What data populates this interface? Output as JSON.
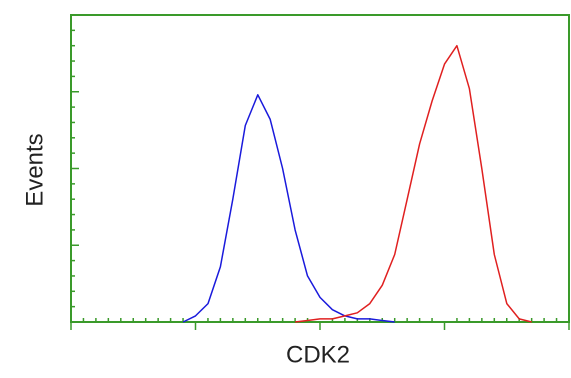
{
  "chart_data": {
    "type": "line",
    "x_label": "CDK2",
    "y_label": "Events",
    "x": [
      0.9,
      1.0,
      1.1,
      1.2,
      1.3,
      1.4,
      1.5,
      1.6,
      1.7,
      1.8,
      1.9,
      2.0,
      2.1,
      2.2,
      2.3,
      2.4,
      2.5,
      2.6,
      2.7,
      2.8,
      2.9,
      3.0,
      3.1,
      3.2,
      3.3,
      3.4,
      3.5,
      3.6,
      3.7
    ],
    "series": [
      {
        "color": "#1a1adc",
        "values": [
          0,
          2,
          6,
          18,
          40,
          64,
          74,
          66,
          50,
          30,
          15,
          8,
          4,
          2,
          1,
          1,
          0.5,
          0,
          null,
          null,
          null,
          null,
          null,
          null,
          null,
          null,
          null,
          null,
          null
        ]
      },
      {
        "color": "#e02020",
        "values": [
          null,
          null,
          null,
          null,
          null,
          null,
          null,
          null,
          null,
          0,
          0.5,
          1,
          1,
          2,
          3,
          6,
          12,
          22,
          40,
          58,
          72,
          84,
          90,
          76,
          50,
          22,
          6,
          1,
          0
        ]
      }
    ],
    "xlim": [
      0,
      4
    ],
    "ylim": [
      0,
      100
    ]
  }
}
